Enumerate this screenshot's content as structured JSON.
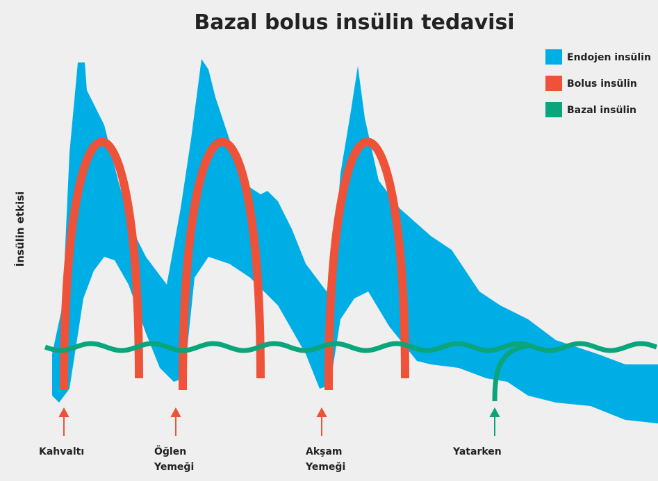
{
  "title": "Bazal bolus insülin tedavisi",
  "y_axis_label": "İnsülin etkisi",
  "legend": [
    {
      "name": "Endojen insülin",
      "color": "#00aee6"
    },
    {
      "name": "Bolus insülin",
      "color": "#ee5238"
    },
    {
      "name": "Bazal insülin",
      "color": "#0aa57a"
    }
  ],
  "events": [
    {
      "lines": [
        "Kahvaltı"
      ]
    },
    {
      "lines": [
        "Öğlen",
        "Yemeği"
      ]
    },
    {
      "lines": [
        "Akşam",
        "Yemeği"
      ]
    },
    {
      "lines": [
        "Yatarken"
      ]
    }
  ]
}
